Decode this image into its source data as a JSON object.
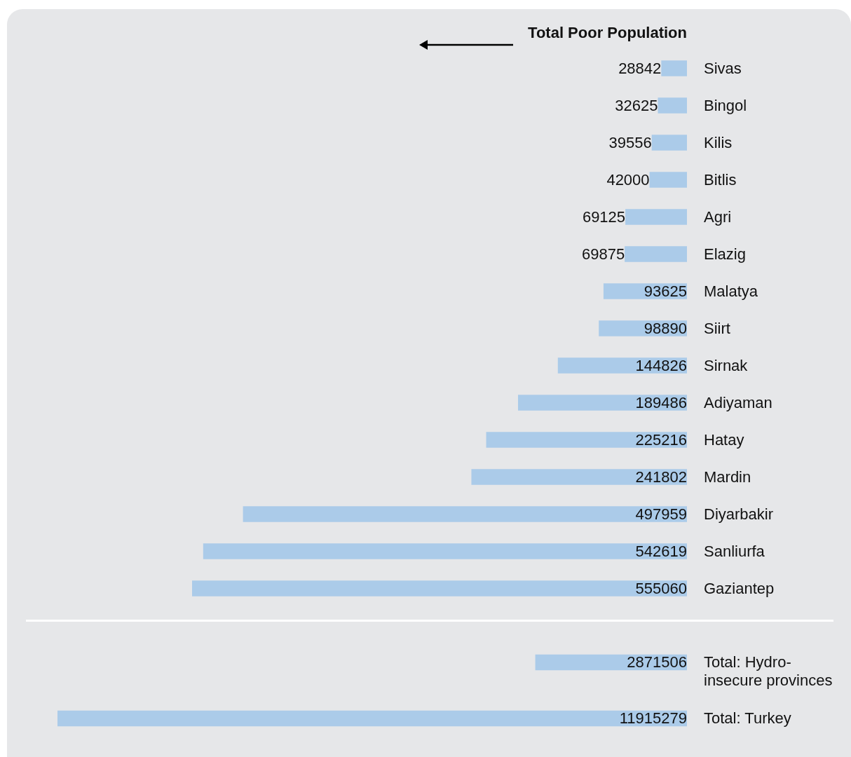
{
  "chart_data": [
    {
      "type": "bar",
      "orientation": "horizontal",
      "title": "Total Poor Population",
      "categories": [
        "Sivas",
        "Bingol",
        "Kilis",
        "Bitlis",
        "Agri",
        "Elazig",
        "Malatya",
        "Siirt",
        "Sirnak",
        "Adiyaman",
        "Hatay",
        "Mardin",
        "Diyarbakir",
        "Sanliurfa",
        "Gaziantep"
      ],
      "values": [
        28842,
        32625,
        39556,
        42000,
        69125,
        69875,
        93625,
        98890,
        144826,
        189486,
        225216,
        241802,
        497959,
        542619,
        555060
      ],
      "color": "#abcbe9",
      "data_labels": true,
      "tick_labels": "y"
    },
    {
      "type": "bar",
      "orientation": "horizontal",
      "categories": [
        "Total: Hydro-insecure provinces",
        "Total: Turkey"
      ],
      "values": [
        2871506,
        11915279
      ],
      "color": "#abcbe9",
      "data_labels": true,
      "tick_labels": "y"
    }
  ]
}
